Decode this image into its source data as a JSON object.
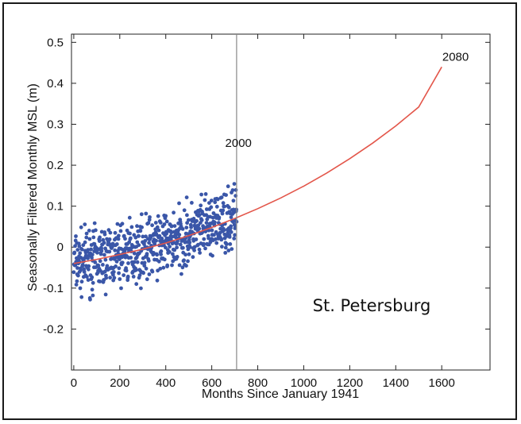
{
  "chart_data": {
    "type": "scatter",
    "xlabel": "Months Since January 1941",
    "ylabel": "Seasonally Filtered Monthly MSL (m)",
    "xlim": [
      -10,
      1810
    ],
    "ylim": [
      -0.3,
      0.52
    ],
    "xticks": [
      0,
      200,
      400,
      600,
      800,
      1000,
      1200,
      1400,
      1600
    ],
    "yticks": [
      -0.2,
      -0.1,
      0,
      0.1,
      0.2,
      0.3,
      0.4,
      0.5
    ],
    "ytick_labels": [
      "-0.2",
      "-0.1",
      "0",
      "0.1",
      "0.2",
      "0.3",
      "0.4",
      "0.5"
    ],
    "colors": {
      "points": "#3a56a8",
      "fit": "#e3564a",
      "vline": "#888888"
    },
    "annotations": [
      {
        "text": "2000",
        "x": 716,
        "y": 0.245
      },
      {
        "text": "2080",
        "x": 1660,
        "y": 0.455
      }
    ],
    "vline_x": 708,
    "fit_curve": {
      "x": [
        0,
        100,
        200,
        300,
        400,
        500,
        600,
        700,
        800,
        900,
        1000,
        1100,
        1200,
        1300,
        1400,
        1500,
        1600
      ],
      "y": [
        -0.04,
        -0.03,
        -0.018,
        -0.005,
        0.01,
        0.028,
        0.048,
        0.07,
        0.094,
        0.12,
        0.149,
        0.181,
        0.216,
        0.254,
        0.296,
        0.342,
        0.44
      ]
    },
    "observed_points_summary": "~700 monthly points, x 0-708, scattered around the fit with spread about ±0.08 m",
    "place_label": "St. Petersburg"
  }
}
